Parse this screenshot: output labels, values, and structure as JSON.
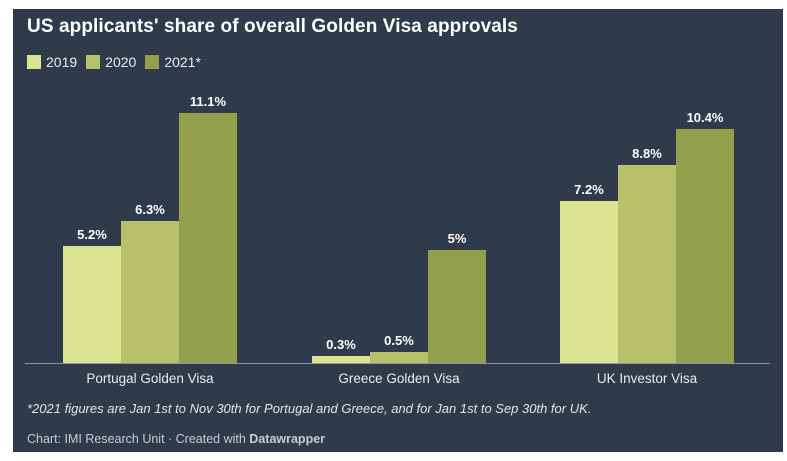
{
  "header": {
    "title": "US applicants' share of overall Golden Visa approvals"
  },
  "colors": {
    "panel_background": "#2f3a4a",
    "axis_line": "#8a96a6",
    "text": "#ffffff",
    "series_2019": "#dbe591",
    "series_2020": "#b6c16a",
    "series_2021": "#93a04b"
  },
  "chart_data": {
    "type": "bar",
    "title": "US applicants' share of overall Golden Visa approvals",
    "categories": [
      "Portugal Golden Visa",
      "Greece Golden Visa",
      "UK Investor Visa"
    ],
    "series": [
      {
        "name": "2019",
        "color": "#dbe591",
        "values": [
          5.2,
          0.3,
          7.2
        ],
        "labels": [
          "5.2%",
          "0.3%",
          "7.2%"
        ]
      },
      {
        "name": "2020",
        "color": "#b6c16a",
        "values": [
          6.3,
          0.5,
          8.8
        ],
        "labels": [
          "6.3%",
          "0.5%",
          "8.8%"
        ]
      },
      {
        "name": "2021*",
        "color": "#93a04b",
        "values": [
          11.1,
          5,
          10.4
        ],
        "labels": [
          "11.1%",
          "5%",
          "10.4%"
        ]
      }
    ],
    "xlabel": "",
    "ylabel": "",
    "ylim": [
      0,
      11.8
    ],
    "grid": false,
    "legend_position": "top",
    "value_labels_shown": true
  },
  "footnote": {
    "text": "*2021 figures are Jan 1st to Nov 30th for Portugal and Greece, and for Jan 1st to Sep 30th for UK."
  },
  "credit": {
    "prefix": "Chart: IMI Research Unit · Created with ",
    "brand": "Datawrapper"
  }
}
